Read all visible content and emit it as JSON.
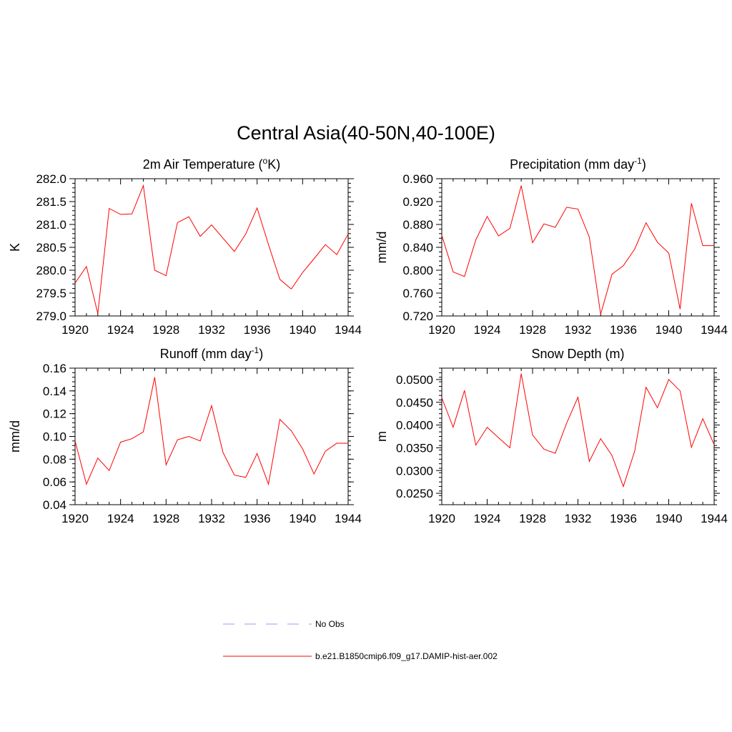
{
  "title": "Central Asia(40-50N,40-100E)",
  "colors": {
    "model": "#ff0000",
    "obs": "#9999ff",
    "axis": "#000000"
  },
  "legend": {
    "obs_label": "No Obs",
    "model_label": "b.e21.B1850cmip6.f09_g17.DAMIP-hist-aer.002"
  },
  "chart_data": [
    {
      "type": "line",
      "title_pre": "2m Air Temperature (",
      "title_sup": "o",
      "title_post": "K)",
      "ylabel": "K",
      "xlim": [
        1920,
        1944
      ],
      "ylim": [
        279.0,
        282.0
      ],
      "xticks": [
        "1920",
        "1924",
        "1928",
        "1932",
        "1936",
        "1940",
        "1944"
      ],
      "yticks": [
        "279.0",
        "279.5",
        "280.0",
        "280.5",
        "281.0",
        "281.5",
        "282.0"
      ],
      "x": [
        1920,
        1921,
        1922,
        1923,
        1924,
        1925,
        1926,
        1927,
        1928,
        1929,
        1930,
        1931,
        1932,
        1933,
        1934,
        1935,
        1936,
        1937,
        1938,
        1939,
        1940,
        1941,
        1942,
        1943,
        1944
      ],
      "series": [
        {
          "name": "b.e21.B1850cmip6.f09_g17.DAMIP-hist-aer.002",
          "values": [
            279.72,
            280.08,
            279.05,
            281.35,
            281.22,
            281.23,
            281.85,
            280.0,
            279.88,
            281.04,
            281.17,
            280.74,
            280.99,
            280.7,
            280.41,
            280.79,
            281.36,
            280.56,
            279.8,
            279.59,
            279.95,
            280.25,
            280.56,
            280.34,
            280.79
          ]
        }
      ]
    },
    {
      "type": "line",
      "title_pre": "Precipitation (mm day",
      "title_sup": "-1",
      "title_post": ")",
      "ylabel": "mm/d",
      "xlim": [
        1920,
        1944
      ],
      "ylim": [
        0.72,
        0.96
      ],
      "xticks": [
        "1920",
        "1924",
        "1928",
        "1932",
        "1936",
        "1940",
        "1944"
      ],
      "yticks": [
        "0.720",
        "0.760",
        "0.800",
        "0.840",
        "0.880",
        "0.920",
        "0.960"
      ],
      "x": [
        1920,
        1921,
        1922,
        1923,
        1924,
        1925,
        1926,
        1927,
        1928,
        1929,
        1930,
        1931,
        1932,
        1933,
        1934,
        1935,
        1936,
        1937,
        1938,
        1939,
        1940,
        1941,
        1942,
        1943,
        1944
      ],
      "series": [
        {
          "name": "b.e21.B1850cmip6.f09_g17.DAMIP-hist-aer.002",
          "values": [
            0.861,
            0.797,
            0.789,
            0.853,
            0.894,
            0.86,
            0.873,
            0.948,
            0.848,
            0.881,
            0.875,
            0.91,
            0.907,
            0.858,
            0.723,
            0.793,
            0.808,
            0.837,
            0.883,
            0.849,
            0.83,
            0.732,
            0.917,
            0.843,
            0.843
          ]
        }
      ]
    },
    {
      "type": "line",
      "title_pre": "Runoff (mm day",
      "title_sup": "-1",
      "title_post": ")",
      "ylabel": "mm/d",
      "xlim": [
        1920,
        1944
      ],
      "ylim": [
        0.04,
        0.16
      ],
      "xticks": [
        "1920",
        "1924",
        "1928",
        "1932",
        "1936",
        "1940",
        "1944"
      ],
      "yticks": [
        "0.04",
        "0.06",
        "0.08",
        "0.10",
        "0.12",
        "0.14",
        "0.16"
      ],
      "x": [
        1920,
        1921,
        1922,
        1923,
        1924,
        1925,
        1926,
        1927,
        1928,
        1929,
        1930,
        1931,
        1932,
        1933,
        1934,
        1935,
        1936,
        1937,
        1938,
        1939,
        1940,
        1941,
        1942,
        1943,
        1944
      ],
      "series": [
        {
          "name": "b.e21.B1850cmip6.f09_g17.DAMIP-hist-aer.002",
          "values": [
            0.096,
            0.058,
            0.081,
            0.07,
            0.095,
            0.098,
            0.104,
            0.152,
            0.075,
            0.097,
            0.1,
            0.096,
            0.127,
            0.086,
            0.066,
            0.064,
            0.085,
            0.058,
            0.115,
            0.105,
            0.089,
            0.067,
            0.087,
            0.094,
            0.094
          ]
        }
      ]
    },
    {
      "type": "line",
      "title_pre": "Snow Depth (m)",
      "title_sup": "",
      "title_post": "",
      "ylabel": "m",
      "xlim": [
        1920,
        1944
      ],
      "ylim": [
        0.0225,
        0.0525
      ],
      "xticks": [
        "1920",
        "1924",
        "1928",
        "1932",
        "1936",
        "1940",
        "1944"
      ],
      "yticks": [
        "0.0250",
        "0.0300",
        "0.0350",
        "0.0400",
        "0.0450",
        "0.0500"
      ],
      "x": [
        1920,
        1921,
        1922,
        1923,
        1924,
        1925,
        1926,
        1927,
        1928,
        1929,
        1930,
        1931,
        1932,
        1933,
        1934,
        1935,
        1936,
        1937,
        1938,
        1939,
        1940,
        1941,
        1942,
        1943,
        1944
      ],
      "series": [
        {
          "name": "b.e21.B1850cmip6.f09_g17.DAMIP-hist-aer.002",
          "values": [
            0.046,
            0.0395,
            0.0476,
            0.0356,
            0.0395,
            0.0372,
            0.035,
            0.0513,
            0.0378,
            0.0347,
            0.0338,
            0.0404,
            0.0461,
            0.032,
            0.037,
            0.0333,
            0.0265,
            0.0343,
            0.0483,
            0.0438,
            0.05,
            0.0475,
            0.0351,
            0.0414,
            0.0357
          ]
        }
      ]
    }
  ]
}
